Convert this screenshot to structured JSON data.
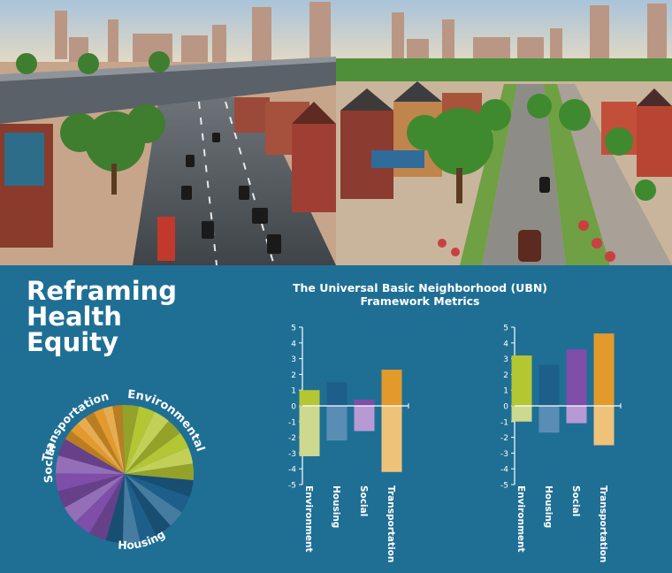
{
  "headline": {
    "line1": "Reframing",
    "line2": "Health",
    "line3": "Equity"
  },
  "framework_title": {
    "line1": "The Universal Basic Neighborhood (UBN)",
    "line2": "Framework Metrics"
  },
  "pie_labels": {
    "transportation": "Transportation",
    "environmental": "Environmental",
    "social": "Social",
    "housing": "Housing"
  },
  "colors": {
    "background": "#1f6f95",
    "environment": "#b5c633",
    "housing": "#1d5f8a",
    "social": "#7e4ea8",
    "transportation": "#e39a2a"
  },
  "chart_data": [
    {
      "type": "pie",
      "categories": [
        "Environmental",
        "Housing",
        "Social",
        "Transportation"
      ],
      "values": [
        27,
        28,
        29,
        16
      ],
      "colors": [
        "#b5c633",
        "#1d5f8a",
        "#7e4ea8",
        "#e39a2a"
      ]
    },
    {
      "type": "bar",
      "categories": [
        "Environment",
        "Housing",
        "Social",
        "Transportation"
      ],
      "series": [
        {
          "values": [
            1.0,
            1.5,
            0.4,
            2.3
          ]
        },
        {
          "values": [
            -3.2,
            -2.2,
            -1.6,
            -4.2
          ]
        }
      ],
      "ylim": [
        -5,
        5
      ],
      "yticks": [
        "-5",
        "-4",
        "-3",
        "-2",
        "-1",
        "0",
        "1",
        "2",
        "3",
        "4",
        "5"
      ],
      "colors": [
        "#b5c633",
        "#1d5f8a",
        "#7e4ea8",
        "#e39a2a"
      ],
      "light_colors": [
        "#cdd98e",
        "#5a8db6",
        "#b799d4",
        "#efc27a"
      ]
    },
    {
      "type": "bar",
      "categories": [
        "Environment",
        "Housing",
        "Social",
        "Transportation"
      ],
      "series": [
        {
          "values": [
            3.2,
            2.6,
            3.6,
            4.6
          ]
        },
        {
          "values": [
            -1.0,
            -1.7,
            -1.1,
            -2.5
          ]
        }
      ],
      "ylim": [
        -5,
        5
      ],
      "yticks": [
        "-5",
        "-4",
        "-3",
        "-2",
        "-1",
        "0",
        "1",
        "2",
        "3",
        "4",
        "5"
      ],
      "colors": [
        "#b5c633",
        "#1d5f8a",
        "#7e4ea8",
        "#e39a2a"
      ],
      "light_colors": [
        "#cdd98e",
        "#5a8db6",
        "#b799d4",
        "#efc27a"
      ]
    }
  ]
}
